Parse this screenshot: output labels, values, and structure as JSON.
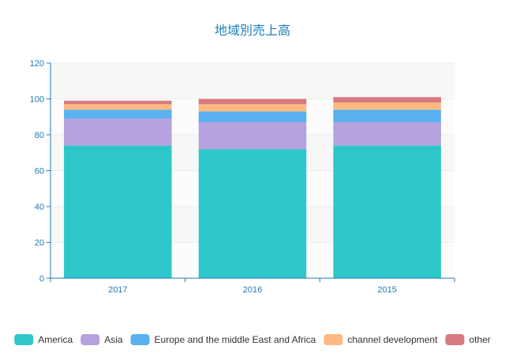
{
  "chart_data": {
    "type": "bar",
    "stacked": true,
    "title": "地域別売上高",
    "categories": [
      "2017",
      "2016",
      "2015"
    ],
    "ylim": [
      0,
      120
    ],
    "yticks": [
      0,
      20,
      40,
      60,
      80,
      100,
      120
    ],
    "grid": true,
    "legend_position": "bottom",
    "series": [
      {
        "name": "America",
        "color": "#2ec7c9",
        "values": [
          74,
          72,
          74
        ]
      },
      {
        "name": "Asia",
        "color": "#b6a2de",
        "values": [
          15,
          15,
          13
        ]
      },
      {
        "name": "Europe and the middle East and Africa",
        "color": "#5ab1ef",
        "values": [
          5,
          6,
          7
        ]
      },
      {
        "name": "channel development",
        "color": "#ffb980",
        "values": [
          3,
          4,
          4
        ]
      },
      {
        "name": "other",
        "color": "#d87a80",
        "values": [
          2,
          3,
          3
        ]
      }
    ]
  }
}
